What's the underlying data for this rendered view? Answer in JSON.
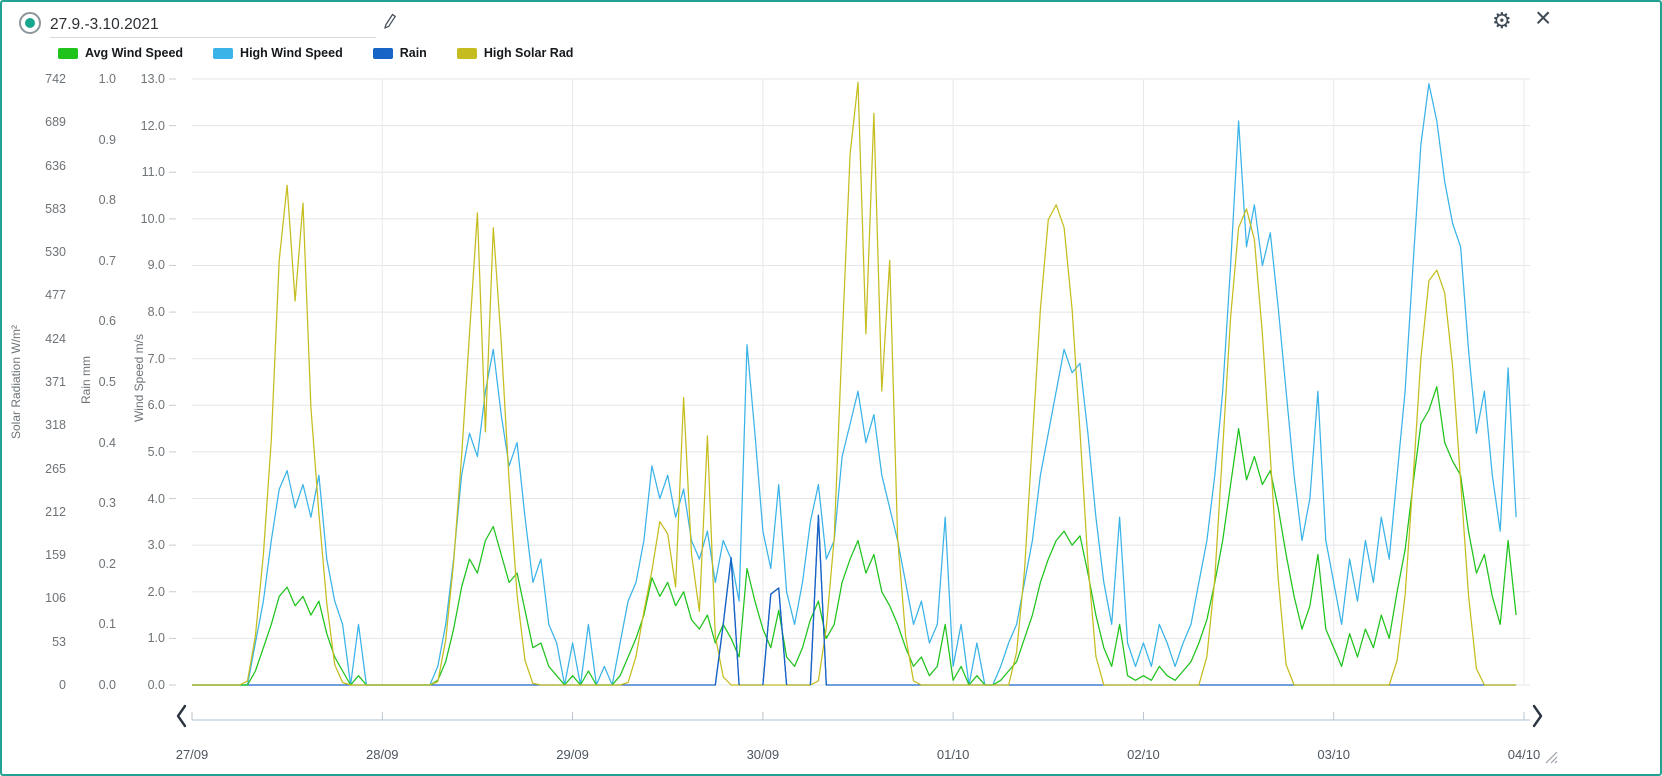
{
  "header": {
    "date_range": "27.9.-3.10.2021",
    "edit_icon": "pencil-icon",
    "settings_icon": "gear-icon",
    "close_icon": "close-icon",
    "close_glyph": "×"
  },
  "legend": [
    {
      "label": "Avg Wind Speed",
      "color": "#1fc31c"
    },
    {
      "label": "High Wind Speed",
      "color": "#3ab3e8"
    },
    {
      "label": "Rain",
      "color": "#1763c6"
    },
    {
      "label": "High Solar Rad",
      "color": "#c5bd1f"
    }
  ],
  "axes": {
    "solar": {
      "title": "Solar Radiation W/m²",
      "ticks": [
        "742",
        "689",
        "636",
        "583",
        "530",
        "477",
        "424",
        "371",
        "318",
        "265",
        "212",
        "159",
        "106",
        "53",
        "0"
      ]
    },
    "rain": {
      "title": "Rain mm",
      "ticks": [
        "1.0",
        "0.9",
        "0.8",
        "0.7",
        "0.6",
        "0.5",
        "0.4",
        "0.3",
        "0.2",
        "0.1",
        "0.0"
      ]
    },
    "wind": {
      "title": "Wind Speed m/s",
      "ticks": [
        "13.0",
        "12.0",
        "11.0",
        "10.0",
        "9.0",
        "8.0",
        "7.0",
        "6.0",
        "5.0",
        "4.0",
        "3.0",
        "2.0",
        "1.0",
        "0.0"
      ]
    }
  },
  "chart_data": {
    "type": "line",
    "x_unit": "hours since 27/09 00:00 (1 point per hour, 7 days)",
    "x_labels": [
      "27/09",
      "28/09",
      "29/09",
      "30/09",
      "01/10",
      "02/10",
      "03/10",
      "04/10"
    ],
    "axis_ranges": {
      "wind_mps": [
        0,
        13.0
      ],
      "rain_mm": [
        0,
        1.0
      ],
      "solar_wm2": [
        0,
        742
      ]
    },
    "grid": true,
    "legend_position": "top",
    "series": [
      {
        "name": "Avg Wind Speed",
        "axis": "wind",
        "color": "#1fc31c",
        "values": [
          0,
          0,
          0,
          0,
          0,
          0,
          0,
          0,
          0.3,
          0.8,
          1.3,
          1.9,
          2.1,
          1.7,
          1.9,
          1.5,
          1.8,
          1.1,
          0.6,
          0.3,
          0,
          0.2,
          0,
          0,
          0,
          0,
          0,
          0,
          0,
          0,
          0,
          0.1,
          0.5,
          1.2,
          2.1,
          2.7,
          2.4,
          3.1,
          3.4,
          2.8,
          2.2,
          2.4,
          1.6,
          0.8,
          0.9,
          0.4,
          0.2,
          0,
          0.2,
          0,
          0.3,
          0,
          0,
          0,
          0.2,
          0.6,
          1,
          1.5,
          2.3,
          1.9,
          2.2,
          1.7,
          2,
          1.4,
          1.2,
          1.5,
          0.9,
          1.3,
          1,
          0.6,
          2.5,
          1.8,
          1.2,
          0.8,
          1.6,
          0.6,
          0.4,
          0.8,
          1.4,
          1.8,
          1,
          1.3,
          2.2,
          2.7,
          3.1,
          2.4,
          2.8,
          2,
          1.7,
          1.3,
          0.8,
          0.4,
          0.6,
          0.2,
          0.4,
          1.3,
          0.1,
          0.4,
          0,
          0.2,
          0,
          0,
          0.1,
          0.3,
          0.5,
          1,
          1.5,
          2.2,
          2.7,
          3.1,
          3.3,
          3,
          3.2,
          2.4,
          1.5,
          0.8,
          0.4,
          1.3,
          0.2,
          0.1,
          0.2,
          0.1,
          0.4,
          0.2,
          0.1,
          0.3,
          0.5,
          0.9,
          1.4,
          2.2,
          3.1,
          4.3,
          5.5,
          4.4,
          4.9,
          4.3,
          4.6,
          3.8,
          2.8,
          1.9,
          1.2,
          1.7,
          2.8,
          1.2,
          0.8,
          0.4,
          1.1,
          0.6,
          1.2,
          0.8,
          1.5,
          1,
          2,
          2.9,
          4.3,
          5.6,
          5.9,
          6.4,
          5.2,
          4.8,
          4.5,
          3.3,
          2.4,
          2.8,
          1.9,
          1.3,
          3.1,
          1.5
        ]
      },
      {
        "name": "High Wind Speed",
        "axis": "wind",
        "color": "#3ab3e8",
        "values": [
          0,
          0,
          0,
          0,
          0,
          0,
          0,
          0,
          0.9,
          1.8,
          3.1,
          4.2,
          4.6,
          3.8,
          4.3,
          3.6,
          4.5,
          2.7,
          1.8,
          1.3,
          0,
          1.3,
          0,
          0,
          0,
          0,
          0,
          0,
          0,
          0,
          0,
          0.4,
          1.3,
          2.7,
          4.5,
          5.4,
          4.9,
          6.3,
          7.2,
          5.8,
          4.7,
          5.2,
          3.6,
          2.2,
          2.7,
          1.3,
          0.9,
          0,
          0.9,
          0,
          1.3,
          0,
          0.4,
          0,
          0.9,
          1.8,
          2.2,
          3.1,
          4.7,
          4,
          4.5,
          3.6,
          4.2,
          3.1,
          2.7,
          3.3,
          2.2,
          3.1,
          2.7,
          1.8,
          7.3,
          5.4,
          3.3,
          2.5,
          4.3,
          2,
          1.3,
          2.2,
          3.5,
          4.3,
          2.7,
          3.1,
          4.9,
          5.6,
          6.3,
          5.2,
          5.8,
          4.5,
          3.8,
          3.1,
          2.2,
          1.3,
          1.8,
          0.9,
          1.3,
          3.6,
          0.4,
          1.3,
          0,
          0.9,
          0,
          0,
          0.4,
          0.9,
          1.3,
          2.2,
          3.1,
          4.5,
          5.4,
          6.3,
          7.2,
          6.7,
          6.9,
          5.4,
          3.6,
          2.2,
          1.3,
          3.6,
          0.9,
          0.4,
          0.9,
          0.4,
          1.3,
          0.9,
          0.4,
          0.9,
          1.3,
          2.2,
          3.1,
          4.5,
          6.3,
          9,
          12.1,
          9.4,
          10.3,
          9,
          9.7,
          8.1,
          6.3,
          4.5,
          3.1,
          4,
          6.3,
          3.1,
          2.2,
          1.3,
          2.7,
          1.8,
          3.1,
          2.2,
          3.6,
          2.7,
          4.5,
          6.3,
          9,
          11.6,
          12.9,
          12.1,
          10.8,
          9.9,
          9.4,
          7.2,
          5.4,
          6.3,
          4.5,
          3.3,
          6.8,
          3.6
        ]
      },
      {
        "name": "Rain",
        "axis": "rain",
        "color": "#1763c6",
        "values": [
          0,
          0,
          0,
          0,
          0,
          0,
          0,
          0,
          0,
          0,
          0,
          0,
          0,
          0,
          0,
          0,
          0,
          0,
          0,
          0,
          0,
          0,
          0,
          0,
          0,
          0,
          0,
          0,
          0,
          0,
          0,
          0,
          0,
          0,
          0,
          0,
          0,
          0,
          0,
          0,
          0,
          0,
          0,
          0,
          0,
          0,
          0,
          0,
          0,
          0,
          0,
          0,
          0,
          0,
          0,
          0,
          0,
          0,
          0,
          0,
          0,
          0,
          0,
          0,
          0,
          0,
          0,
          0.1,
          0.21,
          0,
          0,
          0,
          0,
          0.15,
          0.16,
          0,
          0,
          0,
          0,
          0.28,
          0,
          0,
          0,
          0,
          0,
          0,
          0,
          0,
          0,
          0,
          0,
          0,
          0,
          0,
          0,
          0,
          0,
          0,
          0,
          0,
          0,
          0,
          0,
          0,
          0,
          0,
          0,
          0,
          0,
          0,
          0,
          0,
          0,
          0,
          0,
          0,
          0,
          0,
          0,
          0,
          0,
          0,
          0,
          0,
          0,
          0,
          0,
          0,
          0,
          0,
          0,
          0,
          0,
          0,
          0,
          0,
          0,
          0,
          0,
          0,
          0,
          0,
          0,
          0,
          0,
          0,
          0,
          0,
          0,
          0,
          0,
          0,
          0,
          0,
          0,
          0,
          0,
          0,
          0,
          0,
          0,
          0,
          0,
          0,
          0,
          0,
          0,
          0
        ]
      },
      {
        "name": "High Solar Rad",
        "axis": "solar",
        "color": "#c5bd1f",
        "values": [
          0,
          0,
          0,
          0,
          0,
          0,
          0,
          5,
          60,
          160,
          300,
          520,
          612,
          470,
          590,
          340,
          210,
          100,
          25,
          3,
          0,
          0,
          0,
          0,
          0,
          0,
          0,
          0,
          0,
          0,
          0,
          4,
          55,
          150,
          280,
          430,
          578,
          310,
          560,
          420,
          250,
          110,
          30,
          2,
          0,
          0,
          0,
          0,
          0,
          0,
          0,
          0,
          0,
          0,
          0,
          3,
          35,
          90,
          140,
          200,
          185,
          120,
          352,
          160,
          90,
          305,
          60,
          10,
          0,
          0,
          0,
          0,
          0,
          0,
          0,
          0,
          0,
          0,
          0,
          5,
          70,
          180,
          420,
          650,
          738,
          430,
          700,
          360,
          520,
          180,
          60,
          5,
          0,
          0,
          0,
          0,
          0,
          0,
          0,
          0,
          0,
          0,
          0,
          0,
          40,
          140,
          300,
          460,
          570,
          588,
          560,
          460,
          310,
          150,
          35,
          0,
          0,
          0,
          0,
          0,
          0,
          0,
          0,
          0,
          0,
          0,
          0,
          0,
          35,
          130,
          290,
          450,
          560,
          583,
          545,
          430,
          280,
          130,
          25,
          0,
          0,
          0,
          0,
          0,
          0,
          0,
          0,
          0,
          0,
          0,
          0,
          0,
          30,
          110,
          250,
          400,
          495,
          508,
          480,
          390,
          250,
          110,
          20,
          0,
          0,
          0,
          0,
          0
        ]
      }
    ]
  }
}
